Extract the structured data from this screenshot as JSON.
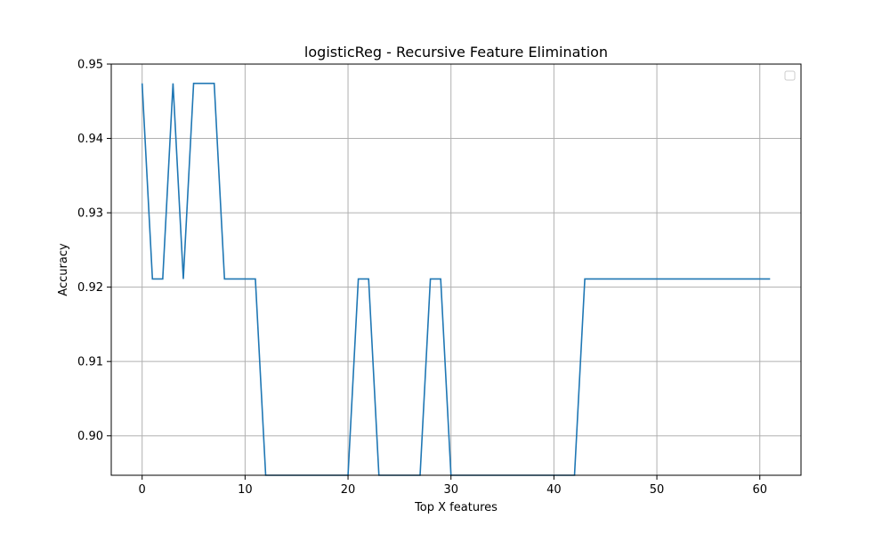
{
  "chart_data": {
    "type": "line",
    "title": "logisticReg - Recursive Feature Elimination",
    "xlabel": "Top X features",
    "ylabel": "Accuracy",
    "xlim": [
      -3,
      64
    ],
    "ylim": [
      0.8947,
      0.95
    ],
    "xticks": [
      0,
      10,
      20,
      30,
      40,
      50,
      60
    ],
    "yticks": [
      0.9,
      0.91,
      0.92,
      0.93,
      0.94,
      0.95
    ],
    "ytick_labels": [
      "0.90",
      "0.91",
      "0.92",
      "0.93",
      "0.94",
      "0.95"
    ],
    "grid": true,
    "legend": "top-right (empty)",
    "series": [
      {
        "color": "#1f77b4",
        "x": [
          0,
          1,
          2,
          3,
          4,
          5,
          6,
          7,
          8,
          9,
          10,
          11,
          12,
          13,
          14,
          15,
          16,
          17,
          18,
          19,
          20,
          21,
          22,
          23,
          24,
          25,
          26,
          27,
          28,
          29,
          30,
          31,
          32,
          33,
          34,
          35,
          36,
          37,
          38,
          39,
          40,
          41,
          42,
          43,
          44,
          45,
          46,
          47,
          48,
          49,
          50,
          51,
          52,
          53,
          54,
          55,
          56,
          57,
          58,
          59,
          60,
          61
        ],
        "values": [
          0.9474,
          0.9211,
          0.9211,
          0.9474,
          0.9211,
          0.9474,
          0.9474,
          0.9474,
          0.9211,
          0.9211,
          0.9211,
          0.9211,
          0.8947,
          0.8947,
          0.8947,
          0.8947,
          0.8947,
          0.8947,
          0.8947,
          0.8947,
          0.8947,
          0.9211,
          0.9211,
          0.8947,
          0.8947,
          0.8947,
          0.8947,
          0.8947,
          0.9211,
          0.9211,
          0.8947,
          0.8947,
          0.8947,
          0.8947,
          0.8947,
          0.8947,
          0.8947,
          0.8947,
          0.8947,
          0.8947,
          0.8947,
          0.8947,
          0.8947,
          0.9211,
          0.9211,
          0.9211,
          0.9211,
          0.9211,
          0.9211,
          0.9211,
          0.9211,
          0.9211,
          0.9211,
          0.9211,
          0.9211,
          0.9211,
          0.9211,
          0.9211,
          0.9211,
          0.9211,
          0.9211,
          0.9211
        ]
      }
    ]
  }
}
